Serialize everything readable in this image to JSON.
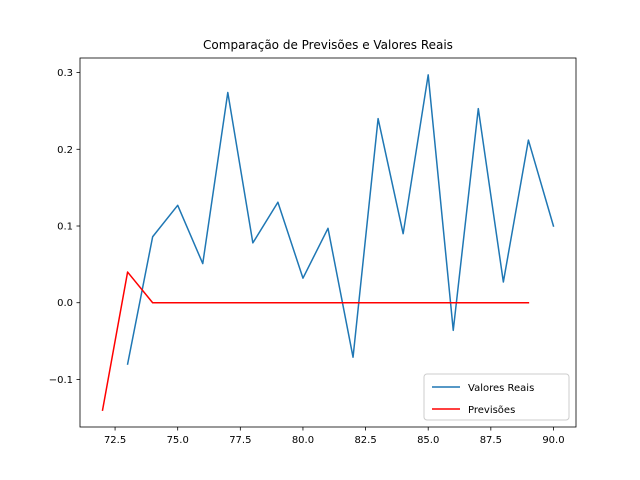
{
  "chart_data": {
    "type": "line",
    "title": "Comparação de Previsões e Valores Reais",
    "xlabel": "",
    "ylabel": "",
    "xlim": [
      71.1,
      90.9
    ],
    "ylim": [
      -0.162,
      0.319
    ],
    "x_ticks": [
      72.5,
      75.0,
      77.5,
      80.0,
      82.5,
      85.0,
      87.5,
      90.0
    ],
    "x_tick_labels": [
      "72.5",
      "75.0",
      "77.5",
      "80.0",
      "82.5",
      "85.0",
      "87.5",
      "90.0"
    ],
    "y_ticks": [
      -0.1,
      0.0,
      0.1,
      0.2,
      0.3
    ],
    "y_tick_labels": [
      "−0.1",
      "0.0",
      "0.1",
      "0.2",
      "0.3"
    ],
    "grid": false,
    "legend_position": "lower right",
    "series": [
      {
        "name": "Valores Reais",
        "color": "#1f77b4",
        "x": [
          73,
          74,
          75,
          76,
          77,
          78,
          79,
          80,
          81,
          82,
          83,
          84,
          85,
          86,
          87,
          88,
          89,
          90
        ],
        "y": [
          -0.08,
          0.086,
          0.127,
          0.051,
          0.274,
          0.078,
          0.131,
          0.032,
          0.097,
          -0.071,
          0.24,
          0.09,
          0.297,
          -0.036,
          0.253,
          0.027,
          0.212,
          0.1
        ]
      },
      {
        "name": "Previsões",
        "color": "#ff0000",
        "x": [
          72,
          73,
          74,
          75,
          76,
          77,
          78,
          79,
          80,
          81,
          82,
          83,
          84,
          85,
          86,
          87,
          88,
          89
        ],
        "y": [
          -0.14,
          0.04,
          0.0,
          0.0,
          0.0,
          0.0,
          0.0,
          0.0,
          0.0,
          0.0,
          0.0,
          0.0,
          0.0,
          0.0,
          0.0,
          0.0,
          0.0,
          0.0
        ]
      }
    ]
  }
}
